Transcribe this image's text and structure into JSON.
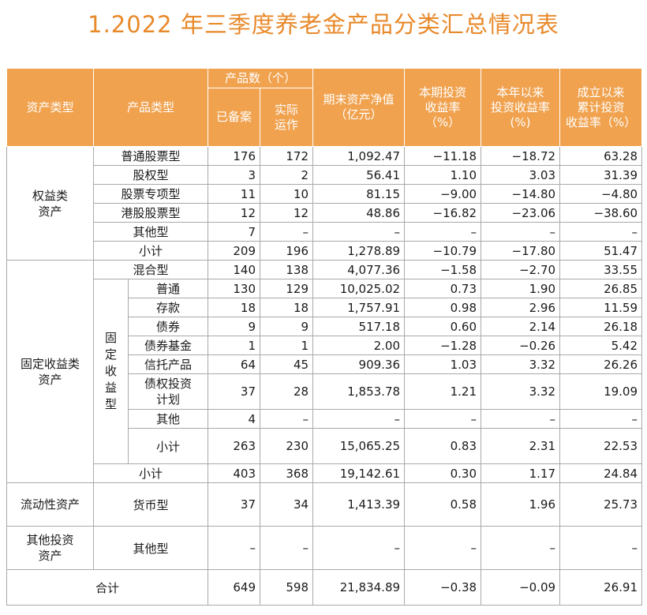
{
  "title": "1.2022 年三季度养老金产品分类汇总情况表",
  "header": {
    "asset_type": "资产类型",
    "product_type": "产品类型",
    "product_count": "产品数（个）",
    "filed": "已备案",
    "actual_line1": "实际",
    "actual_line2": "运作",
    "nav_line1": "期末资产净值",
    "nav_line2": "（亿元）",
    "period_line1": "本期投资",
    "period_line2": "收益率",
    "period_line3": "（%）",
    "ytd_line1": "本年以来",
    "ytd_line2": "投资收益率",
    "ytd_line3": "(%)",
    "incep_line1": "成立以来",
    "incep_line2": "累计投资",
    "incep_line3": "收益率（%）"
  },
  "equity": {
    "label_line1": "权益类",
    "label_line2": "资产",
    "rows": [
      {
        "type": "普通股票型",
        "filed": "176",
        "actual": "172",
        "nav": "1,092.47",
        "period": "−11.18",
        "ytd": "−18.72",
        "since": "63.28"
      },
      {
        "type": "股权型",
        "filed": "3",
        "actual": "2",
        "nav": "56.41",
        "period": "1.10",
        "ytd": "3.03",
        "since": "31.39"
      },
      {
        "type": "股票专项型",
        "filed": "11",
        "actual": "10",
        "nav": "81.15",
        "period": "−9.00",
        "ytd": "−14.80",
        "since": "−4.80"
      },
      {
        "type": "港股股票型",
        "filed": "12",
        "actual": "12",
        "nav": "48.86",
        "period": "−16.82",
        "ytd": "−23.06",
        "since": "−38.60"
      },
      {
        "type": "其他型",
        "filed": "7",
        "actual": "–",
        "nav": "–",
        "period": "–",
        "ytd": "–",
        "since": "–"
      },
      {
        "type": "小计",
        "filed": "209",
        "actual": "196",
        "nav": "1,278.89",
        "period": "−10.79",
        "ytd": "−17.80",
        "since": "51.47"
      }
    ]
  },
  "fixed": {
    "label_line1": "固定收益类",
    "label_line2": "资产",
    "mixed": {
      "type": "混合型",
      "filed": "140",
      "actual": "138",
      "nav": "4,077.36",
      "period": "−1.58",
      "ytd": "−2.70",
      "since": "33.55"
    },
    "fi_label": [
      "固",
      "定",
      "收",
      "益",
      "型"
    ],
    "fi_rows": [
      {
        "type": "普通",
        "filed": "130",
        "actual": "129",
        "nav": "10,025.02",
        "period": "0.73",
        "ytd": "1.90",
        "since": "26.85"
      },
      {
        "type": "存款",
        "filed": "18",
        "actual": "18",
        "nav": "1,757.91",
        "period": "0.98",
        "ytd": "2.96",
        "since": "11.59"
      },
      {
        "type": "债券",
        "filed": "9",
        "actual": "9",
        "nav": "517.18",
        "period": "0.60",
        "ytd": "2.14",
        "since": "26.18"
      },
      {
        "type": "债券基金",
        "filed": "1",
        "actual": "1",
        "nav": "2.00",
        "period": "−1.28",
        "ytd": "−0.26",
        "since": "5.42"
      },
      {
        "type": "信托产品",
        "filed": "64",
        "actual": "45",
        "nav": "909.36",
        "period": "1.03",
        "ytd": "3.32",
        "since": "26.26"
      },
      {
        "type_line1": "债权投资",
        "type_line2": "计划",
        "filed": "37",
        "actual": "28",
        "nav": "1,853.78",
        "period": "1.21",
        "ytd": "3.32",
        "since": "19.09"
      },
      {
        "type": "其他",
        "filed": "4",
        "actual": "–",
        "nav": "–",
        "period": "–",
        "ytd": "–",
        "since": "–"
      },
      {
        "type": "小计",
        "filed": "263",
        "actual": "230",
        "nav": "15,065.25",
        "period": "0.83",
        "ytd": "2.31",
        "since": "22.53"
      }
    ],
    "subtotal": {
      "type": "小计",
      "filed": "403",
      "actual": "368",
      "nav": "19,142.61",
      "period": "0.30",
      "ytd": "1.17",
      "since": "24.84"
    }
  },
  "liquidity": {
    "label": "流动性资产",
    "type": "货币型",
    "filed": "37",
    "actual": "34",
    "nav": "1,413.39",
    "period": "0.58",
    "ytd": "1.96",
    "since": "25.73"
  },
  "other": {
    "label_line1": "其他投资",
    "label_line2": "资产",
    "type": "其他型",
    "filed": "–",
    "actual": "–",
    "nav": "–",
    "period": "–",
    "ytd": "–",
    "since": "–"
  },
  "total": {
    "label": "合计",
    "filed": "649",
    "actual": "598",
    "nav": "21,834.89",
    "period": "−0.38",
    "ytd": "−0.09",
    "since": "26.91"
  }
}
